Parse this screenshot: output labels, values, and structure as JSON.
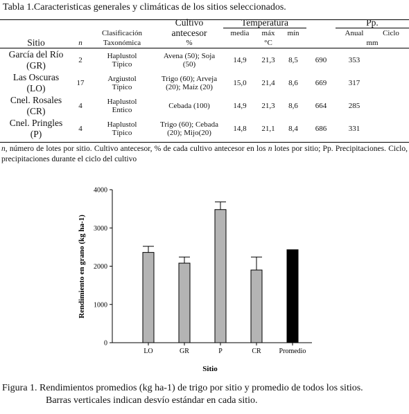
{
  "table": {
    "title": "Tabla 1.Caracteristicas generales y climáticas de los sitios seleccionados.",
    "headers": {
      "cultivo_l1": "Cultivo",
      "temperatura": "Temperatura",
      "pp": "Pp.",
      "clasif_l1": "Clasificación",
      "cultivo_l2": "antecesor",
      "media": "media",
      "max": "máx",
      "min": "mín",
      "anual": "Anual",
      "ciclo": "Ciclo",
      "sitio": "Sitio",
      "n": "n",
      "clasif_l2": "Taxonómica",
      "pct": "%",
      "degc": "°C",
      "mm": "mm"
    },
    "rows": [
      {
        "sitio1": "García del Río",
        "sitio2": "(GR)",
        "n": "2",
        "clas1": "Haplustol",
        "clas2": "Típico",
        "cult1": "Avena (50); Soja",
        "cult2": "(50)",
        "media": "14,9",
        "max": "21,3",
        "min": "8,5",
        "anual": "690",
        "ciclo": "353"
      },
      {
        "sitio1": "Las Oscuras",
        "sitio2": "(LO)",
        "n": "17",
        "clas1": "Argiustol",
        "clas2": "Típico",
        "cult1": "Trigo (60); Arveja",
        "cult2": "(20); Maíz (20)",
        "media": "15,0",
        "max": "21,4",
        "min": "8,6",
        "anual": "669",
        "ciclo": "317"
      },
      {
        "sitio1": "Cnel. Rosales",
        "sitio2": "(CR)",
        "n": "4",
        "clas1": "Haplustol",
        "clas2": "Entico",
        "cult1": "Cebada (100)",
        "cult2": "",
        "media": "14,9",
        "max": "21,3",
        "min": "8,6",
        "anual": "664",
        "ciclo": "285"
      },
      {
        "sitio1": "Cnel. Pringles",
        "sitio2": "(P)",
        "n": "4",
        "clas1": "Haplustol",
        "clas2": "Típico",
        "cult1": "Trigo (60); Cebada",
        "cult2": "(20); Mijo(20)",
        "media": "14,8",
        "max": "21,1",
        "min": "8,4",
        "anual": "686",
        "ciclo": "331"
      }
    ],
    "note": {
      "n": "n",
      "t1": ", número de lotes por sitio. Cultivo antecesor, % de cada cultivo antecesor en los ",
      "n2": "n",
      "t2": " lotes por sitio; Pp. Precipitaciones. Ciclo, precipitaciones durante el ciclo del cultivo"
    }
  },
  "chart_data": {
    "type": "bar",
    "categories": [
      "LO",
      "GR",
      "P",
      "CR",
      "Promedio"
    ],
    "values": [
      2360,
      2080,
      3480,
      1900,
      2430
    ],
    "errors": [
      160,
      160,
      200,
      340,
      null
    ],
    "colors": [
      "#b4b4b4",
      "#b4b4b4",
      "#b4b4b4",
      "#b4b4b4",
      "#000000"
    ],
    "xlabel": "Sitio",
    "ylabel": "Rendimiento en grano (kg ha-1)",
    "ylim": [
      0,
      4000
    ],
    "yticks": [
      "0",
      "1000",
      "2000",
      "3000",
      "4000"
    ],
    "grid": false
  },
  "figure": {
    "caption_l1": "Figura 1. Rendimientos promedios (kg ha-1) de trigo por sitio y promedio de todos los sitios.",
    "caption_l2": "Barras verticales indican desvío estándar en cada sitio."
  }
}
